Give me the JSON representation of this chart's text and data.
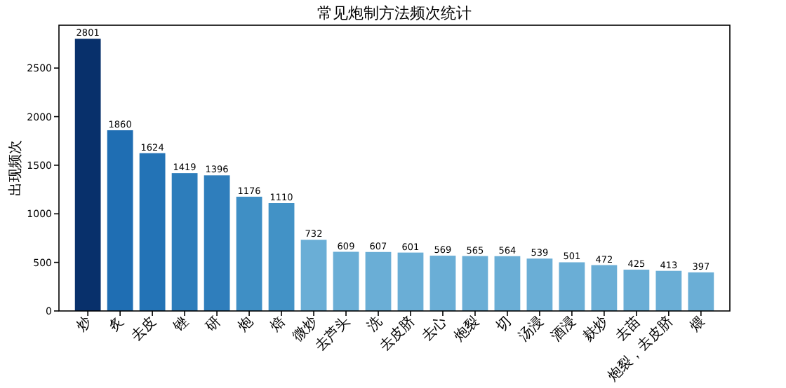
{
  "chart_data": {
    "type": "bar",
    "title": "常见炮制方法频次统计",
    "ylabel": "出现频次",
    "categories": [
      "炒",
      "炙",
      "去皮",
      "锉",
      "研",
      "炮",
      "焙",
      "微炒",
      "去芦头",
      "洗",
      "去皮脐",
      "去心",
      "炮裂",
      "切",
      "汤浸",
      "酒浸",
      "麸炒",
      "去苗",
      "炮裂，去皮脐",
      "煨"
    ],
    "values": [
      2801,
      1860,
      1624,
      1419,
      1396,
      1176,
      1110,
      732,
      609,
      607,
      601,
      569,
      565,
      564,
      539,
      501,
      472,
      425,
      413,
      397
    ],
    "colors": [
      "#08306b",
      "#1f6eb3",
      "#2373b6",
      "#2d7dbb",
      "#2f7ebc",
      "#3f8fc5",
      "#4292c6",
      "#6aaed6",
      "#6aaed6",
      "#6aaed6",
      "#6aaed6",
      "#6aaed6",
      "#6aaed6",
      "#6aaed6",
      "#6aaed6",
      "#6aaed6",
      "#6aaed6",
      "#6aaed6",
      "#6aaed6",
      "#6aaed6"
    ],
    "ylim": [
      0,
      2941
    ],
    "yticks": [
      0,
      500,
      1000,
      1500,
      2000,
      2500
    ],
    "data_labels": true
  }
}
